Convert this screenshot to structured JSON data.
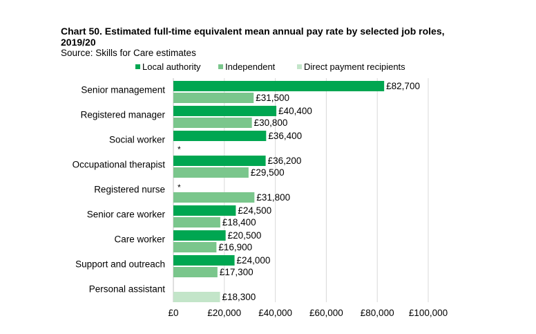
{
  "chart_data": {
    "type": "bar",
    "orientation": "horizontal",
    "title": "Chart 50. Estimated full-time equivalent mean annual pay rate by selected job roles, 2019/20",
    "subtitle": "Source: Skills for Care estimates",
    "xlabel": "",
    "ylabel": "",
    "xlim": [
      0,
      100000
    ],
    "x_ticks": [
      0,
      20000,
      40000,
      60000,
      80000,
      100000
    ],
    "x_tick_labels": [
      "£0",
      "£20,000",
      "£40,000",
      "£60,000",
      "£80,000",
      "£100,000"
    ],
    "grid": true,
    "legend_position": "top",
    "categories": [
      "Senior management",
      "Registered manager",
      "Social worker",
      "Occupational therapist",
      "Registered nurse",
      "Senior care worker",
      "Care worker",
      "Support and outreach",
      "Personal assistant"
    ],
    "series": [
      {
        "name": "Local authority",
        "color": "#00a651",
        "values": [
          82700,
          40400,
          36400,
          36200,
          null,
          24500,
          20500,
          24000,
          null
        ],
        "labels": [
          "£82,700",
          "£40,400",
          "£36,400",
          "£36,200",
          "*",
          "£24,500",
          "£20,500",
          "£24,000",
          ""
        ]
      },
      {
        "name": "Independent",
        "color": "#7ac68c",
        "values": [
          31500,
          30800,
          null,
          29500,
          31800,
          18400,
          16900,
          17300,
          null
        ],
        "labels": [
          "£31,500",
          "£30,800",
          "*",
          "£29,500",
          "£31,800",
          "£18,400",
          "£16,900",
          "£17,300",
          ""
        ]
      },
      {
        "name": "Direct payment recipients",
        "color": "#c3e5c9",
        "values": [
          null,
          null,
          null,
          null,
          null,
          null,
          null,
          null,
          18300
        ],
        "labels": [
          "",
          "",
          "",
          "",
          "",
          "",
          "",
          "",
          "£18,300"
        ]
      }
    ]
  }
}
